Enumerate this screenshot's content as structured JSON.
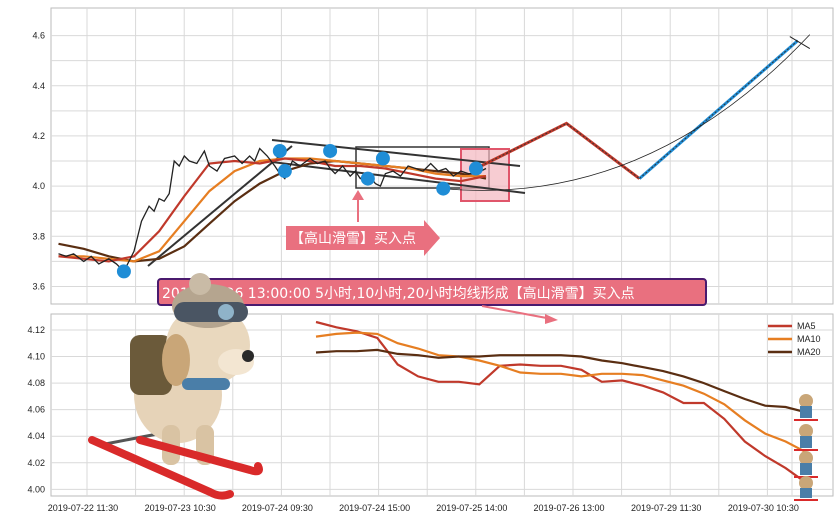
{
  "colors": {
    "price": "#222222",
    "ma5": "#c0392b",
    "ma10": "#e67e22",
    "ma20": "#5a2e12",
    "pivot": "#1f8dd6",
    "channel": "#333333",
    "box_fill": "#f4b6bf",
    "box_stroke": "#e0566b",
    "projection_red": "#c0392b",
    "projection_blue": "#1f8dd6",
    "callout_bg": "#e9707f",
    "banner_bg": "#e9707f",
    "banner_border": "#4a1a6e"
  },
  "annotations": {
    "callout": "【高山滑雪】买入点",
    "banner": "2019-07-26 13:00:00 5小时,10小时,20小时均线形成【高山滑雪】买入点"
  },
  "chart_data": [
    {
      "type": "line",
      "panel": "price",
      "x_tick_labels": [
        "2019-07-22 11:30",
        "2019-07-23 10:30",
        "2019-07-24 09:30",
        "2019-07-24 15:00",
        "2019-07-25 14:00",
        "2019-07-26 13:00",
        "2019-07-29 11:30",
        "2019-07-30 10:30"
      ],
      "y_ticks": [
        3.6,
        3.8,
        4.0,
        4.2,
        4.4,
        4.6
      ],
      "ylim": [
        3.53,
        4.71
      ],
      "series": [
        {
          "name": "price",
          "x": [
            0,
            0.3,
            0.6,
            1,
            1.3,
            1.6,
            2,
            2.3,
            2.6,
            3,
            3.3,
            3.6,
            3.8,
            4,
            4.2,
            4.4,
            4.6,
            4.8,
            5,
            5.2,
            5.5,
            5.8,
            6,
            6.3,
            6.6,
            7,
            7.3,
            7.6,
            7.8,
            8,
            8.3,
            8.6,
            8.8,
            9,
            9.3,
            9.6,
            10,
            10.3,
            10.6,
            10.8,
            11,
            11.3,
            11.6,
            11.8,
            12,
            12.3,
            12.6,
            12.8,
            13,
            13.3,
            13.6,
            13.9,
            14.2,
            14.5,
            14.8,
            15.1,
            15.4,
            15.7,
            16,
            16.3,
            16.6,
            17
          ],
          "y": [
            3.73,
            3.72,
            3.73,
            3.7,
            3.72,
            3.69,
            3.71,
            3.69,
            3.66,
            3.74,
            3.86,
            3.92,
            3.9,
            3.95,
            3.94,
            3.97,
            4.1,
            4.08,
            4.12,
            4.1,
            4.09,
            4.14,
            4.08,
            4.06,
            4.11,
            4.12,
            4.09,
            4.12,
            4.1,
            4.15,
            4.12,
            4.08,
            4.05,
            4.03,
            4.1,
            4.08,
            4.11,
            4.09,
            4.1,
            4.07,
            4.05,
            4.08,
            4.04,
            4.06,
            4.03,
            4.05,
            4.01,
            4.0,
            4.05,
            4.06,
            4.04,
            4.08,
            4.07,
            4.06,
            4.09,
            4.06,
            4.07,
            4.04,
            4.06,
            4.05,
            4.05,
            4.07
          ]
        },
        {
          "name": "MA5",
          "x": [
            0,
            1,
            2,
            3,
            4,
            5,
            6,
            7,
            8,
            9,
            10,
            11,
            12,
            13,
            14,
            15,
            16,
            17
          ],
          "y": [
            3.72,
            3.71,
            3.7,
            3.72,
            3.82,
            3.96,
            4.09,
            4.1,
            4.09,
            4.11,
            4.1,
            4.08,
            4.08,
            4.07,
            4.05,
            4.03,
            4.02,
            4.04
          ]
        },
        {
          "name": "MA10",
          "x": [
            0,
            1,
            2,
            3,
            4,
            5,
            6,
            7,
            8,
            9,
            10,
            11,
            12,
            13,
            14,
            15,
            16,
            17
          ],
          "y": [
            3.72,
            3.72,
            3.71,
            3.7,
            3.74,
            3.86,
            3.98,
            4.06,
            4.1,
            4.11,
            4.11,
            4.1,
            4.09,
            4.08,
            4.07,
            4.05,
            4.04,
            4.04
          ]
        },
        {
          "name": "MA20",
          "x": [
            0,
            1,
            2,
            3,
            4,
            5,
            6,
            7,
            8,
            9,
            10,
            11,
            12,
            13,
            14,
            15,
            16,
            17
          ],
          "y": [
            3.77,
            3.75,
            3.72,
            3.7,
            3.71,
            3.76,
            3.85,
            3.94,
            4.01,
            4.06,
            4.09,
            4.1,
            4.09,
            4.08,
            4.07,
            4.06,
            4.05,
            4.03
          ]
        }
      ],
      "pivots": [
        {
          "x": 2.6,
          "y": 3.66
        },
        {
          "x": 8.8,
          "y": 4.14
        },
        {
          "x": 9.0,
          "y": 4.06
        },
        {
          "x": 10.8,
          "y": 4.14
        },
        {
          "x": 12.3,
          "y": 4.03
        },
        {
          "x": 12.9,
          "y": 4.11
        },
        {
          "x": 15.3,
          "y": 3.99
        },
        {
          "x": 16.6,
          "y": 4.07
        }
      ],
      "projection": [
        {
          "x": 16.8,
          "y": 4.08
        },
        {
          "x": 20.2,
          "y": 4.25
        },
        {
          "x": 23.1,
          "y": 4.03
        },
        {
          "x": 29.4,
          "y": 4.58
        }
      ],
      "x_axis_span": [
        -0.3,
        30.8
      ]
    },
    {
      "type": "line",
      "panel": "moving_averages",
      "y_ticks": [
        4.0,
        4.02,
        4.04,
        4.06,
        4.08,
        4.1,
        4.12
      ],
      "ylim": [
        3.995,
        4.132
      ],
      "legend": [
        "MA5",
        "MA10",
        "MA20"
      ],
      "legend_position": "top-right",
      "series": [
        {
          "name": "MA5",
          "x": [
            0,
            1,
            2,
            3,
            4,
            5,
            6,
            7,
            8,
            9,
            10,
            11,
            12,
            13,
            14,
            15,
            16,
            17,
            18,
            19,
            20,
            21,
            22,
            23,
            24
          ],
          "y": [
            4.126,
            4.122,
            4.119,
            4.114,
            4.094,
            4.085,
            4.081,
            4.081,
            4.079,
            4.093,
            4.094,
            4.093,
            4.093,
            4.09,
            4.081,
            4.082,
            4.078,
            4.073,
            4.065,
            4.065,
            4.053,
            4.036,
            4.025,
            4.016,
            4.005
          ]
        },
        {
          "name": "MA10",
          "x": [
            0,
            1,
            2,
            3,
            4,
            5,
            6,
            7,
            8,
            9,
            10,
            11,
            12,
            13,
            14,
            15,
            16,
            17,
            18,
            19,
            20,
            21,
            22,
            23,
            24
          ],
          "y": [
            4.115,
            4.117,
            4.118,
            4.117,
            4.11,
            4.106,
            4.101,
            4.1,
            4.097,
            4.093,
            4.088,
            4.087,
            4.087,
            4.085,
            4.087,
            4.087,
            4.086,
            4.082,
            4.078,
            4.072,
            4.064,
            4.052,
            4.042,
            4.036,
            4.028
          ]
        },
        {
          "name": "MA20",
          "x": [
            0,
            1,
            2,
            3,
            4,
            5,
            6,
            7,
            8,
            9,
            10,
            11,
            12,
            13,
            14,
            15,
            16,
            17,
            18,
            19,
            20,
            21,
            22,
            23,
            24
          ],
          "y": [
            4.103,
            4.104,
            4.104,
            4.105,
            4.102,
            4.101,
            4.099,
            4.1,
            4.1,
            4.101,
            4.101,
            4.101,
            4.101,
            4.1,
            4.097,
            4.095,
            4.092,
            4.089,
            4.085,
            4.08,
            4.074,
            4.068,
            4.063,
            4.062,
            4.058
          ]
        }
      ]
    }
  ]
}
